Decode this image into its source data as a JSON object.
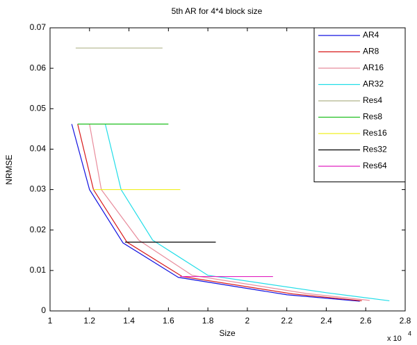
{
  "chart_data": {
    "type": "line",
    "title": "5th AR for 4*4 block size",
    "x_label": "Size",
    "y_label": "NRMSE",
    "x_multiplier": "x 10",
    "x_exponent": "4",
    "xlim": [
      1,
      2.8
    ],
    "xticks": [
      1,
      1.2,
      1.4,
      1.6,
      1.8,
      2,
      2.2,
      2.4,
      2.6,
      2.8
    ],
    "ylim": [
      0,
      0.07
    ],
    "yticks": [
      0,
      0.01,
      0.02,
      0.03,
      0.04,
      0.05,
      0.06,
      0.07
    ],
    "grid": false,
    "legend": "top-right",
    "series": [
      {
        "name": "AR4",
        "color": "#1010e0",
        "x": [
          1.11,
          1.2,
          1.37,
          1.65,
          2.2,
          2.57
        ],
        "values": [
          0.0462,
          0.03,
          0.0168,
          0.0083,
          0.004,
          0.0024
        ]
      },
      {
        "name": "AR8",
        "color": "#d81818",
        "x": [
          1.14,
          1.22,
          1.39,
          1.67,
          2.23,
          2.58
        ],
        "values": [
          0.0462,
          0.03,
          0.017,
          0.0085,
          0.0042,
          0.0025
        ]
      },
      {
        "name": "AR16",
        "color": "#e88c9c",
        "x": [
          1.2,
          1.26,
          1.45,
          1.72,
          2.3,
          2.62
        ],
        "values": [
          0.0462,
          0.03,
          0.0175,
          0.0088,
          0.0043,
          0.0026
        ]
      },
      {
        "name": "AR32",
        "color": "#20dde8",
        "x": [
          1.28,
          1.36,
          1.52,
          1.8,
          2.4,
          2.72
        ],
        "values": [
          0.0462,
          0.03,
          0.0175,
          0.0088,
          0.0045,
          0.0025
        ]
      },
      {
        "name": "Res4",
        "color": "#b0b48a",
        "x": [
          1.13,
          1.57
        ],
        "values": [
          0.065,
          0.065
        ]
      },
      {
        "name": "Res8",
        "color": "#20c020",
        "x": [
          1.14,
          1.6
        ],
        "values": [
          0.0462,
          0.0462
        ]
      },
      {
        "name": "Res16",
        "color": "#f0f020",
        "x": [
          1.22,
          1.66
        ],
        "values": [
          0.03,
          0.03
        ]
      },
      {
        "name": "Res32",
        "color": "#000000",
        "x": [
          1.38,
          1.84
        ],
        "values": [
          0.017,
          0.017
        ]
      },
      {
        "name": "Res64",
        "color": "#e020c0",
        "x": [
          1.66,
          2.13
        ],
        "values": [
          0.0085,
          0.0085
        ]
      }
    ]
  }
}
